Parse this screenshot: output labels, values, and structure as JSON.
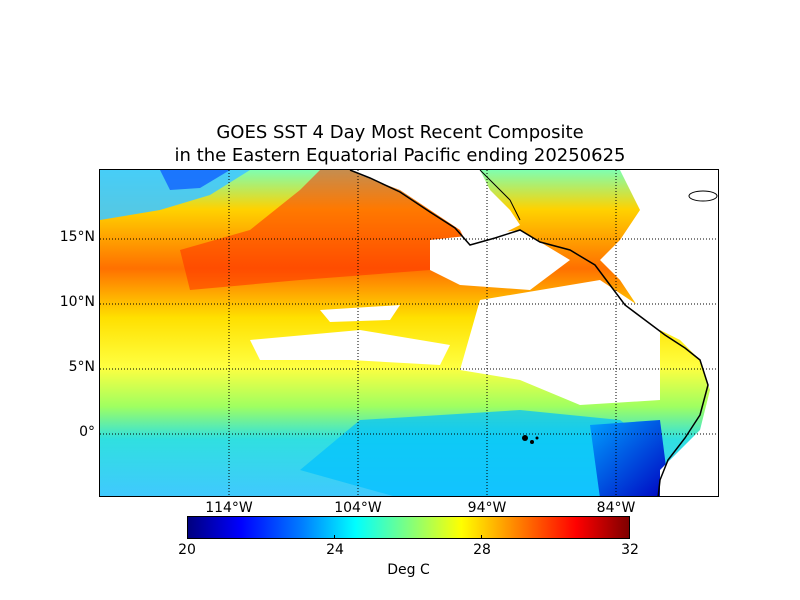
{
  "title_line1": "GOES SST 4 Day Most Recent Composite",
  "title_line2": "in the Eastern Equatorial Pacific ending 20250625",
  "lat_labels": [
    "15°N",
    "10°N",
    "5°N",
    "0°"
  ],
  "lon_labels": [
    "114°W",
    "104°W",
    "94°W",
    "84°W"
  ],
  "colorbar": {
    "ticks": [
      "20",
      "24",
      "28",
      "32"
    ],
    "label": "Deg C",
    "min": 20,
    "max": 32,
    "colormap": "jet"
  },
  "colors": {
    "land": "#ffffff",
    "missing": "#ffffff",
    "coastline": "#000000",
    "graticule": "#000000"
  }
}
